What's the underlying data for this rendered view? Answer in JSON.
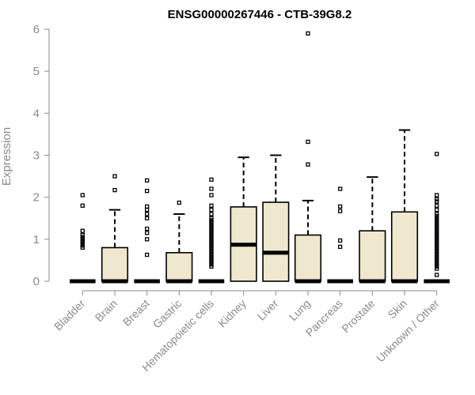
{
  "chart_data": {
    "type": "boxplot",
    "title": "ENSG00000267446 - CTB-39G8.2",
    "xlabel": "",
    "ylabel": "Expression",
    "ylim": [
      0,
      6
    ],
    "yticks": [
      0,
      1,
      2,
      3,
      4,
      5,
      6
    ],
    "grid": false,
    "categories": [
      "Bladder",
      "Brain",
      "Breast",
      "Gastric",
      "Hematopoietic cells",
      "Kidney",
      "Liver",
      "Lung",
      "Pancreas",
      "Prostate",
      "Skin",
      "Unknown / Other"
    ],
    "boxes": [
      {
        "q1": 0,
        "median": 0,
        "q3": 0,
        "whisker_low": 0,
        "whisker_high": 0,
        "outliers": [
          0.8,
          0.85,
          0.9,
          0.95,
          1.0,
          1.05,
          1.1,
          1.2,
          1.8,
          2.05
        ]
      },
      {
        "q1": 0,
        "median": 0,
        "q3": 0.8,
        "whisker_low": 0,
        "whisker_high": 1.7,
        "outliers": [
          2.17,
          2.5
        ]
      },
      {
        "q1": 0,
        "median": 0,
        "q3": 0,
        "whisker_low": 0,
        "whisker_high": 0,
        "outliers": [
          0.63,
          1.0,
          1.15,
          1.25,
          1.5,
          1.6,
          1.7,
          1.78,
          2.15,
          2.4
        ]
      },
      {
        "q1": 0,
        "median": 0,
        "q3": 0.68,
        "whisker_low": 0,
        "whisker_high": 1.6,
        "outliers": [
          1.87
        ]
      },
      {
        "q1": 0,
        "median": 0,
        "q3": 0,
        "whisker_low": 0,
        "whisker_high": 0,
        "outliers": [
          0.35,
          0.4,
          0.45,
          0.5,
          0.55,
          0.6,
          0.65,
          0.7,
          0.75,
          0.8,
          0.85,
          0.9,
          0.95,
          1.0,
          1.05,
          1.1,
          1.15,
          1.2,
          1.25,
          1.3,
          1.35,
          1.4,
          1.45,
          1.5,
          1.6,
          1.7,
          1.8,
          2.05,
          2.2,
          2.42
        ]
      },
      {
        "q1": 0,
        "median": 0.87,
        "q3": 1.77,
        "whisker_low": 0,
        "whisker_high": 2.95,
        "outliers": []
      },
      {
        "q1": 0,
        "median": 0.68,
        "q3": 1.88,
        "whisker_low": 0,
        "whisker_high": 3.0,
        "outliers": []
      },
      {
        "q1": 0,
        "median": 0,
        "q3": 1.1,
        "whisker_low": 0,
        "whisker_high": 1.92,
        "outliers": [
          2.78,
          3.32,
          5.9
        ]
      },
      {
        "q1": 0,
        "median": 0,
        "q3": 0,
        "whisker_low": 0,
        "whisker_high": 0,
        "outliers": [
          0.82,
          0.97,
          1.67,
          1.78,
          2.2
        ]
      },
      {
        "q1": 0,
        "median": 0,
        "q3": 1.2,
        "whisker_low": 0,
        "whisker_high": 2.48,
        "outliers": []
      },
      {
        "q1": 0,
        "median": 0,
        "q3": 1.65,
        "whisker_low": 0,
        "whisker_high": 3.6,
        "outliers": []
      },
      {
        "q1": 0,
        "median": 0,
        "q3": 0,
        "whisker_low": 0,
        "whisker_high": 0,
        "outliers": [
          0.15,
          0.3,
          0.35,
          0.4,
          0.45,
          0.5,
          0.55,
          0.6,
          0.65,
          0.7,
          0.75,
          0.8,
          0.85,
          0.9,
          0.95,
          1.0,
          1.05,
          1.1,
          1.15,
          1.2,
          1.25,
          1.3,
          1.35,
          1.4,
          1.45,
          1.5,
          1.55,
          1.6,
          1.7,
          1.8,
          1.9,
          1.95,
          2.05,
          3.03
        ]
      }
    ],
    "colors": {
      "box_fill": "#efe8cf",
      "box_stroke": "#000000",
      "axis": "#8a8a8a"
    }
  }
}
